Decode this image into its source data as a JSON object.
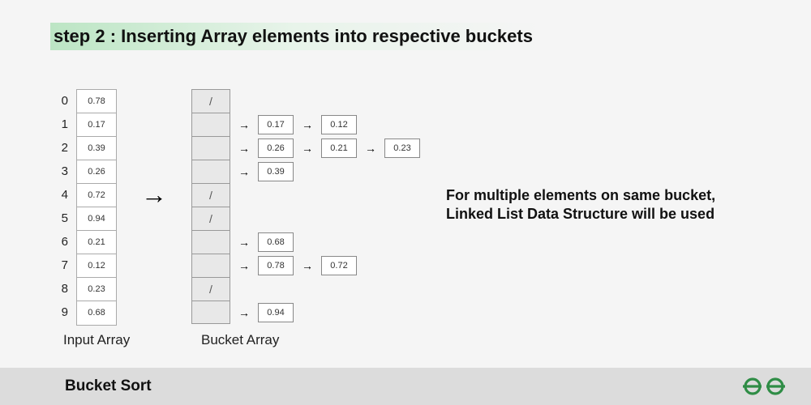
{
  "title": "step 2 : Inserting Array elements into respective buckets",
  "indices": [
    "0",
    "1",
    "2",
    "3",
    "4",
    "5",
    "6",
    "7",
    "8",
    "9"
  ],
  "input_array": [
    "0.78",
    "0.17",
    "0.39",
    "0.26",
    "0.72",
    "0.94",
    "0.21",
    "0.12",
    "0.23",
    "0.68"
  ],
  "input_label": "Input Array",
  "bucket_label": "Bucket Array",
  "empty_symbol": "/",
  "buckets": [
    {
      "empty": true,
      "chain": []
    },
    {
      "empty": false,
      "chain": [
        "0.17",
        "0.12"
      ]
    },
    {
      "empty": false,
      "chain": [
        "0.26",
        "0.21",
        "0.23"
      ]
    },
    {
      "empty": false,
      "chain": [
        "0.39"
      ]
    },
    {
      "empty": true,
      "chain": []
    },
    {
      "empty": true,
      "chain": []
    },
    {
      "empty": false,
      "chain": [
        "0.68"
      ]
    },
    {
      "empty": false,
      "chain": [
        "0.78",
        "0.72"
      ]
    },
    {
      "empty": true,
      "chain": []
    },
    {
      "empty": false,
      "chain": [
        "0.94"
      ]
    }
  ],
  "note_line1": "For multiple elements on same bucket,",
  "note_line2": "Linked List Data Structure will be used",
  "footer_title": "Bucket Sort",
  "colors": {
    "page_bg": "#f5f5f5",
    "title_highlight": "#bce5c4",
    "cell_bg": "#ffffff",
    "bucket_bg": "#e8e8e8",
    "border": "#999999",
    "footer_bg": "#dcdcdc",
    "logo": "#2f8d46",
    "text": "#111111"
  },
  "fonts": {
    "title_size": 22,
    "label_size": 17,
    "note_size": 18,
    "cell_size": 11,
    "index_size": 15,
    "footer_size": 19
  }
}
